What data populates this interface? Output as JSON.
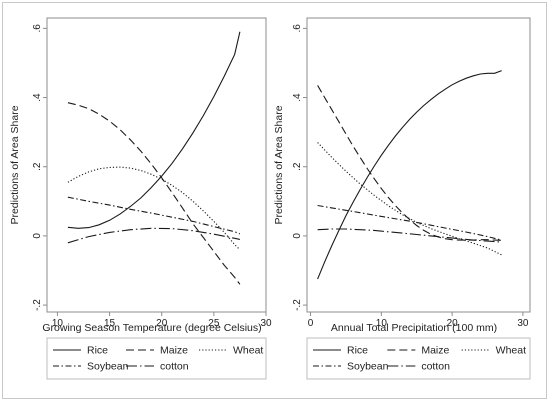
{
  "chart_data": [
    {
      "type": "line",
      "xlabel": "Growing Season Temperature (degree Celsius)",
      "ylabel": "Predictions of Area Share",
      "xlim": [
        9,
        30
      ],
      "ylim": [
        -0.22,
        0.63
      ],
      "xticks": [
        10,
        15,
        20,
        25,
        30
      ],
      "yticks": [
        -0.2,
        0,
        0.2,
        0.4,
        0.6
      ],
      "grid": false,
      "legend_position": "bottom",
      "series": [
        {
          "name": "Rice",
          "dash": "solid",
          "x": [
            11,
            12,
            13,
            14,
            15,
            16,
            17,
            18,
            19,
            20,
            21,
            22,
            23,
            24,
            25,
            26,
            27,
            27.5
          ],
          "y": [
            0.025,
            0.022,
            0.024,
            0.032,
            0.045,
            0.063,
            0.085,
            0.11,
            0.14,
            0.173,
            0.21,
            0.252,
            0.298,
            0.348,
            0.403,
            0.462,
            0.525,
            0.59
          ]
        },
        {
          "name": "Maize",
          "dash": "long",
          "x": [
            11,
            12,
            13,
            14,
            15,
            16,
            17,
            18,
            19,
            20,
            21,
            22,
            23,
            24,
            25,
            26,
            27,
            27.5
          ],
          "y": [
            0.385,
            0.378,
            0.368,
            0.352,
            0.332,
            0.307,
            0.278,
            0.245,
            0.208,
            0.168,
            0.125,
            0.08,
            0.035,
            -0.005,
            -0.045,
            -0.085,
            -0.12,
            -0.14
          ]
        },
        {
          "name": "Wheat",
          "dash": "dot",
          "x": [
            11,
            12,
            13,
            14,
            15,
            16,
            17,
            18,
            19,
            20,
            21,
            22,
            23,
            24,
            25,
            26,
            27,
            27.5
          ],
          "y": [
            0.155,
            0.172,
            0.185,
            0.194,
            0.198,
            0.199,
            0.196,
            0.189,
            0.178,
            0.164,
            0.146,
            0.125,
            0.1,
            0.072,
            0.042,
            0.01,
            -0.025,
            -0.04
          ]
        },
        {
          "name": "Soybean",
          "dash": "dashdot",
          "x": [
            11,
            13,
            15,
            17,
            19,
            21,
            23,
            25,
            27,
            27.5
          ],
          "y": [
            0.112,
            0.1,
            0.089,
            0.077,
            0.066,
            0.054,
            0.042,
            0.027,
            0.012,
            0.006
          ]
        },
        {
          "name": "cotton",
          "dash": "longdot",
          "x": [
            11,
            13,
            15,
            17,
            19,
            21,
            23,
            25,
            27,
            27.5
          ],
          "y": [
            -0.02,
            -0.002,
            0.01,
            0.018,
            0.022,
            0.021,
            0.015,
            0.005,
            -0.007,
            -0.01
          ]
        }
      ]
    },
    {
      "type": "line",
      "xlabel": "Annual Total Precipitation (100 mm)",
      "ylabel": "Predictions of Area Share",
      "xlim": [
        -0.5,
        31
      ],
      "ylim": [
        -0.22,
        0.63
      ],
      "xticks": [
        0,
        10,
        20,
        30
      ],
      "yticks": [
        -0.2,
        0,
        0.2,
        0.4,
        0.6
      ],
      "grid": false,
      "legend_position": "bottom",
      "series": [
        {
          "name": "Rice",
          "dash": "solid",
          "x": [
            1,
            2,
            3,
            4,
            5,
            6,
            7,
            8,
            9,
            10,
            11,
            12,
            13,
            14,
            15,
            16,
            17,
            18,
            19,
            20,
            21,
            22,
            23,
            24,
            25,
            26,
            27
          ],
          "y": [
            -0.125,
            -0.075,
            -0.028,
            0.016,
            0.058,
            0.097,
            0.134,
            0.169,
            0.202,
            0.233,
            0.262,
            0.289,
            0.314,
            0.337,
            0.358,
            0.377,
            0.394,
            0.41,
            0.424,
            0.437,
            0.447,
            0.456,
            0.463,
            0.468,
            0.47,
            0.47,
            0.478
          ]
        },
        {
          "name": "Maize",
          "dash": "long",
          "x": [
            1,
            2,
            3,
            4,
            5,
            6,
            7,
            8,
            9,
            10,
            11,
            12,
            13,
            14,
            15,
            16,
            17,
            18,
            19,
            20,
            21,
            22,
            23,
            24,
            25,
            26,
            27
          ],
          "y": [
            0.435,
            0.4,
            0.365,
            0.33,
            0.295,
            0.26,
            0.227,
            0.195,
            0.165,
            0.137,
            0.111,
            0.087,
            0.066,
            0.047,
            0.03,
            0.016,
            0.005,
            -0.003,
            -0.008,
            -0.011,
            -0.012,
            -0.012,
            -0.012,
            -0.011,
            -0.011,
            -0.012,
            -0.013
          ]
        },
        {
          "name": "Wheat",
          "dash": "dot",
          "x": [
            1,
            3,
            5,
            7,
            9,
            11,
            13,
            15,
            17,
            19,
            21,
            23,
            25,
            27
          ],
          "y": [
            0.27,
            0.227,
            0.187,
            0.15,
            0.117,
            0.087,
            0.061,
            0.039,
            0.021,
            0.006,
            -0.008,
            -0.021,
            -0.035,
            -0.055
          ]
        },
        {
          "name": "Soybean",
          "dash": "dashdot",
          "x": [
            1,
            3,
            5,
            7,
            9,
            11,
            13,
            15,
            17,
            19,
            21,
            23,
            25,
            27
          ],
          "y": [
            0.088,
            0.081,
            0.074,
            0.067,
            0.06,
            0.053,
            0.046,
            0.039,
            0.031,
            0.023,
            0.015,
            0.007,
            -0.002,
            -0.012
          ]
        },
        {
          "name": "cotton",
          "dash": "longdot",
          "x": [
            1,
            3,
            5,
            7,
            9,
            11,
            13,
            15,
            17,
            19,
            21,
            23,
            25,
            27
          ],
          "y": [
            0.018,
            0.02,
            0.02,
            0.018,
            0.016,
            0.012,
            0.008,
            0.004,
            0.0,
            -0.004,
            -0.008,
            -0.012,
            -0.015,
            -0.018
          ]
        }
      ]
    }
  ],
  "style": {
    "line_color": "#1a1a1a",
    "frame_color": "#8c8c8c",
    "legend_border_color": "#bdbdbd"
  }
}
